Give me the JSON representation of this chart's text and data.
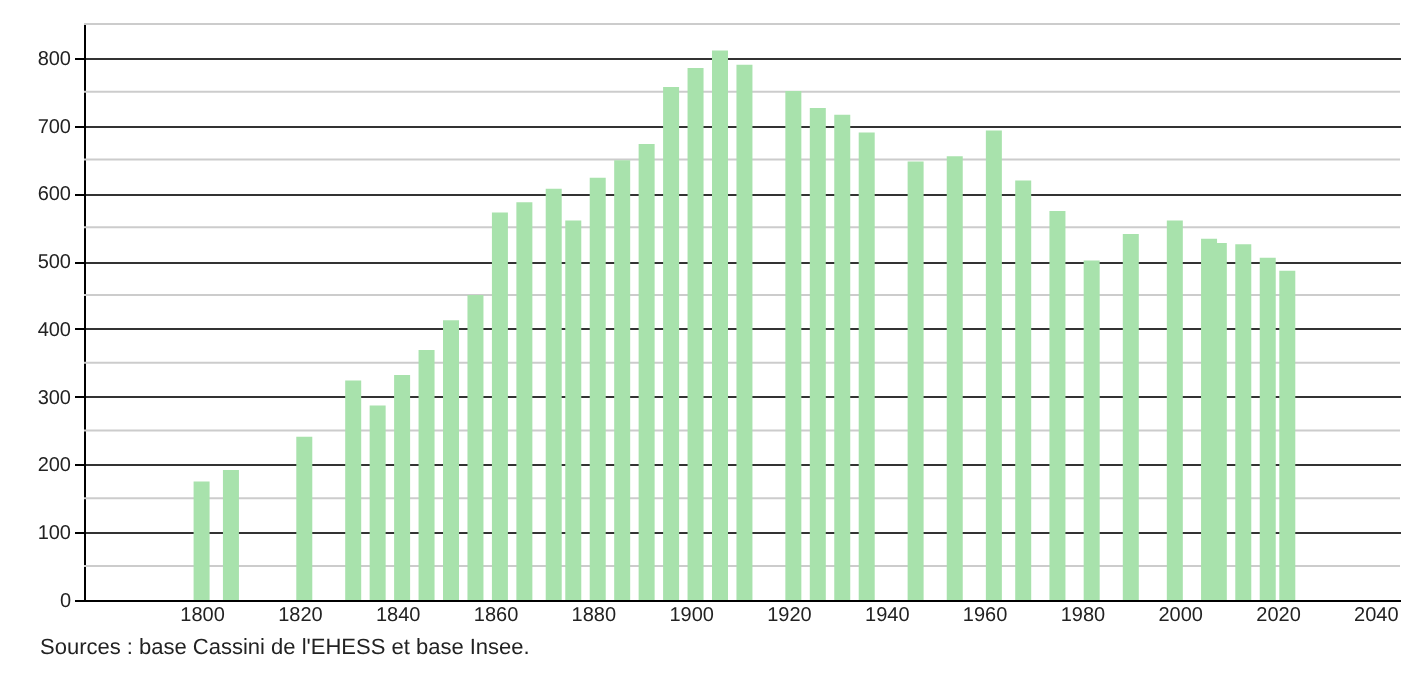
{
  "chart_data": {
    "type": "bar",
    "x": [
      1800,
      1806,
      1821,
      1831,
      1836,
      1841,
      1846,
      1851,
      1856,
      1861,
      1866,
      1872,
      1876,
      1881,
      1886,
      1891,
      1896,
      1901,
      1906,
      1911,
      1921,
      1926,
      1931,
      1936,
      1946,
      1954,
      1962,
      1968,
      1975,
      1982,
      1990,
      1999,
      2006,
      2008,
      2013,
      2018,
      2022
    ],
    "values": [
      175,
      192,
      241,
      324,
      287,
      332,
      369,
      413,
      450,
      572,
      587,
      607,
      560,
      623,
      649,
      673,
      757,
      785,
      811,
      790,
      751,
      726,
      716,
      690,
      647,
      655,
      693,
      619,
      574,
      501,
      540,
      560,
      533,
      527,
      525,
      505,
      486
    ],
    "color": "#a8e2ac",
    "xlim": [
      1778,
      2043
    ],
    "xticks": [
      1800,
      1820,
      1840,
      1860,
      1880,
      1900,
      1920,
      1940,
      1960,
      1980,
      2000,
      2020,
      2040
    ],
    "ylim": [
      0,
      850
    ],
    "yticks": [
      0,
      100,
      200,
      300,
      400,
      500,
      600,
      700,
      800
    ],
    "grid": "y",
    "annotations": [
      "Sources : base Cassini de l'EHESS et base Insee."
    ]
  }
}
